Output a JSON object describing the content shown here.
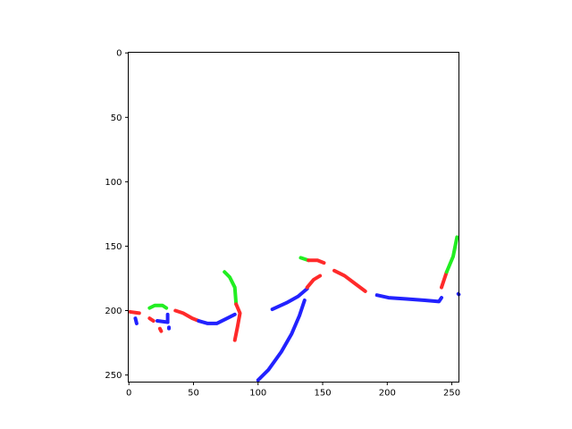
{
  "chart_data": {
    "type": "image",
    "xlim": [
      -0.5,
      255.5
    ],
    "ylim": [
      255.5,
      -0.5
    ],
    "y_inverted": true,
    "grid": false,
    "xticks": [
      0,
      50,
      100,
      150,
      200,
      250
    ],
    "yticks": [
      0,
      50,
      100,
      150,
      200,
      250
    ],
    "xtick_labels": [
      "0",
      "50",
      "100",
      "150",
      "200",
      "250"
    ],
    "ytick_labels": [
      "0",
      "50",
      "100",
      "150",
      "200",
      "250"
    ],
    "background": "#ffffff",
    "colors": {
      "red": "#ff2a2a",
      "green": "#22ee22",
      "blue": "#2222ff"
    },
    "strokes": [
      {
        "color": "red",
        "points": [
          [
            1,
            201
          ],
          [
            8,
            202
          ]
        ]
      },
      {
        "color": "blue",
        "points": [
          [
            5,
            206
          ],
          [
            6,
            210
          ]
        ]
      },
      {
        "color": "green",
        "points": [
          [
            16,
            198
          ],
          [
            20,
            196
          ],
          [
            26,
            196
          ],
          [
            29,
            198
          ]
        ]
      },
      {
        "color": "red",
        "points": [
          [
            16,
            206
          ],
          [
            19,
            208
          ]
        ]
      },
      {
        "color": "red",
        "points": [
          [
            24,
            214
          ],
          [
            25,
            216
          ]
        ]
      },
      {
        "color": "blue",
        "points": [
          [
            22,
            208
          ],
          [
            30,
            209
          ]
        ]
      },
      {
        "color": "blue",
        "points": [
          [
            30,
            203
          ],
          [
            30,
            209
          ]
        ]
      },
      {
        "color": "blue",
        "points": [
          [
            31,
            213
          ],
          [
            31,
            214
          ]
        ]
      },
      {
        "color": "red",
        "points": [
          [
            36,
            200
          ],
          [
            42,
            202
          ],
          [
            49,
            206
          ],
          [
            54,
            208
          ]
        ]
      },
      {
        "color": "blue",
        "points": [
          [
            54,
            208
          ],
          [
            61,
            210
          ],
          [
            68,
            210
          ],
          [
            76,
            206
          ],
          [
            82,
            203
          ]
        ]
      },
      {
        "color": "green",
        "points": [
          [
            74,
            170
          ],
          [
            78,
            174
          ],
          [
            82,
            182
          ],
          [
            83,
            195
          ]
        ]
      },
      {
        "color": "red",
        "points": [
          [
            83,
            195
          ],
          [
            86,
            202
          ],
          [
            84,
            213
          ],
          [
            82,
            223
          ]
        ]
      },
      {
        "color": "blue",
        "points": [
          [
            100,
            254
          ],
          [
            108,
            246
          ],
          [
            118,
            232
          ],
          [
            126,
            218
          ],
          [
            132,
            204
          ],
          [
            136,
            192
          ]
        ]
      },
      {
        "color": "blue",
        "points": [
          [
            111,
            199
          ],
          [
            122,
            194
          ],
          [
            131,
            189
          ],
          [
            138,
            183
          ]
        ]
      },
      {
        "color": "green",
        "points": [
          [
            133,
            159
          ],
          [
            139,
            161
          ]
        ]
      },
      {
        "color": "red",
        "points": [
          [
            139,
            161
          ],
          [
            146,
            161
          ],
          [
            151,
            163
          ]
        ]
      },
      {
        "color": "red",
        "points": [
          [
            138,
            182
          ],
          [
            143,
            176
          ],
          [
            148,
            173
          ]
        ]
      },
      {
        "color": "red",
        "points": [
          [
            159,
            169
          ],
          [
            167,
            173
          ],
          [
            175,
            179
          ],
          [
            183,
            185
          ]
        ]
      },
      {
        "color": "blue",
        "points": [
          [
            192,
            188
          ],
          [
            201,
            190
          ],
          [
            215,
            191
          ],
          [
            229,
            192
          ],
          [
            240,
            193
          ],
          [
            242,
            190
          ]
        ]
      },
      {
        "color": "red",
        "points": [
          [
            242,
            182
          ],
          [
            246,
            170
          ]
        ]
      },
      {
        "color": "green",
        "points": [
          [
            246,
            170
          ],
          [
            251,
            158
          ],
          [
            254,
            143
          ]
        ]
      },
      {
        "color": "blue",
        "points": [
          [
            255,
            187
          ],
          [
            255.4,
            187.5
          ]
        ]
      }
    ]
  }
}
